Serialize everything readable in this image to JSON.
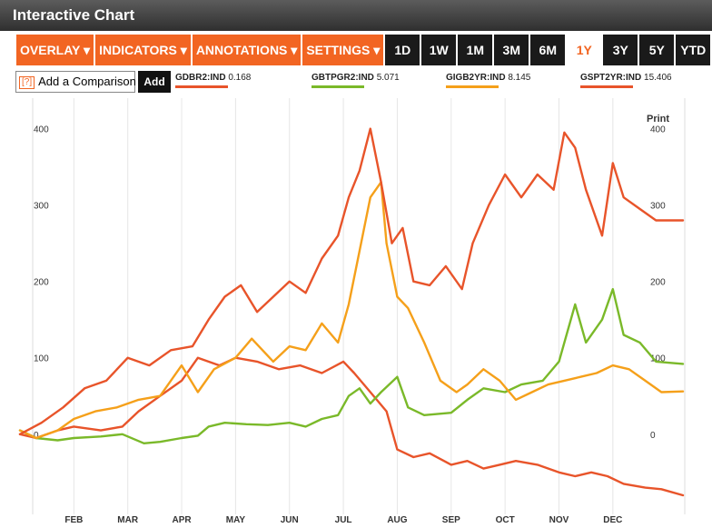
{
  "header": {
    "title": "Interactive Chart"
  },
  "toolbar": {
    "menus": [
      {
        "label": "OVERLAY ▾"
      },
      {
        "label": "INDICATORS ▾"
      },
      {
        "label": "ANNOTATIONS ▾"
      },
      {
        "label": "SETTINGS ▾"
      }
    ],
    "ranges": [
      "1D",
      "1W",
      "1M",
      "3M",
      "6M",
      "1Y",
      "3Y",
      "5Y",
      "YTD"
    ],
    "active_range": "1Y"
  },
  "comparison": {
    "help": "[?]",
    "placeholder": "Add a Comparison",
    "add_label": "Add"
  },
  "legend": [
    {
      "symbol": "GDBR2:IND",
      "value": "0.168",
      "color": "#e8542a"
    },
    {
      "symbol": "GBTPGR2:IND",
      "value": "5.071",
      "color": "#7ab929"
    },
    {
      "symbol": "GIGB2YR:IND",
      "value": "8.145",
      "color": "#f5a01a"
    },
    {
      "symbol": "GSPT2YR:IND",
      "value": "15.406",
      "color": "#e8542a"
    }
  ],
  "print_label": "Print",
  "chart_data": {
    "type": "line",
    "title": "",
    "xlabel": "",
    "ylabel": "",
    "ylim": [
      -105,
      440
    ],
    "xlim": [
      0,
      12.3
    ],
    "y_ticks": [
      0,
      100,
      200,
      300,
      400
    ],
    "x_ticks": [
      {
        "label": "FEB",
        "x": 1
      },
      {
        "label": "MAR",
        "x": 2
      },
      {
        "label": "APR",
        "x": 3
      },
      {
        "label": "MAY",
        "x": 4
      },
      {
        "label": "JUN",
        "x": 5
      },
      {
        "label": "JUL",
        "x": 6
      },
      {
        "label": "AUG",
        "x": 7
      },
      {
        "label": "SEP",
        "x": 8
      },
      {
        "label": "OCT",
        "x": 9
      },
      {
        "label": "NOV",
        "x": 10
      },
      {
        "label": "DEC",
        "x": 11
      }
    ],
    "grid": "vertical",
    "series": [
      {
        "name": "GDBR2:IND",
        "color": "#e8542a",
        "points": [
          [
            0,
            0
          ],
          [
            0.3,
            -5
          ],
          [
            0.7,
            5
          ],
          [
            1,
            10
          ],
          [
            1.5,
            5
          ],
          [
            1.9,
            10
          ],
          [
            2.2,
            30
          ],
          [
            2.6,
            50
          ],
          [
            3,
            70
          ],
          [
            3.3,
            100
          ],
          [
            3.7,
            90
          ],
          [
            4,
            100
          ],
          [
            4.4,
            95
          ],
          [
            4.8,
            85
          ],
          [
            5.2,
            90
          ],
          [
            5.6,
            80
          ],
          [
            6,
            95
          ],
          [
            6.2,
            80
          ],
          [
            6.5,
            55
          ],
          [
            6.8,
            30
          ],
          [
            7,
            -20
          ],
          [
            7.3,
            -30
          ],
          [
            7.6,
            -25
          ],
          [
            8,
            -40
          ],
          [
            8.3,
            -35
          ],
          [
            8.6,
            -45
          ],
          [
            8.9,
            -40
          ],
          [
            9.2,
            -35
          ],
          [
            9.6,
            -40
          ],
          [
            10,
            -50
          ],
          [
            10.3,
            -55
          ],
          [
            10.6,
            -50
          ],
          [
            10.9,
            -55
          ],
          [
            11.2,
            -65
          ],
          [
            11.6,
            -70
          ],
          [
            11.9,
            -72
          ],
          [
            12.3,
            -80
          ]
        ]
      },
      {
        "name": "GBTPGR2:IND",
        "color": "#7ab929",
        "points": [
          [
            0,
            5
          ],
          [
            0.3,
            -5
          ],
          [
            0.7,
            -8
          ],
          [
            1,
            -5
          ],
          [
            1.5,
            -3
          ],
          [
            1.9,
            0
          ],
          [
            2.3,
            -12
          ],
          [
            2.6,
            -10
          ],
          [
            3,
            -5
          ],
          [
            3.3,
            -2
          ],
          [
            3.5,
            10
          ],
          [
            3.8,
            15
          ],
          [
            4.2,
            13
          ],
          [
            4.6,
            12
          ],
          [
            5,
            15
          ],
          [
            5.3,
            10
          ],
          [
            5.6,
            20
          ],
          [
            5.9,
            25
          ],
          [
            6.1,
            50
          ],
          [
            6.3,
            60
          ],
          [
            6.5,
            40
          ],
          [
            6.7,
            55
          ],
          [
            7,
            75
          ],
          [
            7.2,
            35
          ],
          [
            7.5,
            25
          ],
          [
            8,
            28
          ],
          [
            8.3,
            45
          ],
          [
            8.6,
            60
          ],
          [
            9,
            55
          ],
          [
            9.3,
            65
          ],
          [
            9.7,
            70
          ],
          [
            10,
            95
          ],
          [
            10.3,
            170
          ],
          [
            10.5,
            120
          ],
          [
            10.8,
            150
          ],
          [
            11,
            190
          ],
          [
            11.2,
            130
          ],
          [
            11.5,
            120
          ],
          [
            11.8,
            95
          ],
          [
            12.3,
            92
          ]
        ]
      },
      {
        "name": "GIGB2YR:IND",
        "color": "#f5a01a",
        "points": [
          [
            0,
            5
          ],
          [
            0.3,
            -5
          ],
          [
            0.7,
            5
          ],
          [
            1,
            20
          ],
          [
            1.4,
            30
          ],
          [
            1.8,
            35
          ],
          [
            2.2,
            45
          ],
          [
            2.6,
            50
          ],
          [
            3,
            90
          ],
          [
            3.3,
            55
          ],
          [
            3.6,
            85
          ],
          [
            4,
            100
          ],
          [
            4.3,
            125
          ],
          [
            4.7,
            95
          ],
          [
            5,
            115
          ],
          [
            5.3,
            110
          ],
          [
            5.6,
            145
          ],
          [
            5.9,
            120
          ],
          [
            6.1,
            170
          ],
          [
            6.3,
            240
          ],
          [
            6.5,
            310
          ],
          [
            6.7,
            330
          ],
          [
            6.8,
            250
          ],
          [
            7,
            180
          ],
          [
            7.2,
            165
          ],
          [
            7.5,
            120
          ],
          [
            7.8,
            70
          ],
          [
            8.1,
            55
          ],
          [
            8.3,
            65
          ],
          [
            8.6,
            85
          ],
          [
            8.9,
            70
          ],
          [
            9.2,
            45
          ],
          [
            9.5,
            55
          ],
          [
            9.8,
            65
          ],
          [
            10.1,
            70
          ],
          [
            10.4,
            75
          ],
          [
            10.7,
            80
          ],
          [
            11,
            90
          ],
          [
            11.3,
            85
          ],
          [
            11.6,
            70
          ],
          [
            11.9,
            55
          ],
          [
            12.3,
            56
          ]
        ]
      },
      {
        "name": "GSPT2YR:IND",
        "color": "#e8542a",
        "points": [
          [
            0,
            0
          ],
          [
            0.4,
            15
          ],
          [
            0.8,
            35
          ],
          [
            1.2,
            60
          ],
          [
            1.6,
            70
          ],
          [
            2,
            100
          ],
          [
            2.4,
            90
          ],
          [
            2.8,
            110
          ],
          [
            3.2,
            115
          ],
          [
            3.5,
            150
          ],
          [
            3.8,
            180
          ],
          [
            4.1,
            195
          ],
          [
            4.4,
            160
          ],
          [
            4.7,
            180
          ],
          [
            5,
            200
          ],
          [
            5.3,
            185
          ],
          [
            5.6,
            230
          ],
          [
            5.9,
            260
          ],
          [
            6.1,
            310
          ],
          [
            6.3,
            345
          ],
          [
            6.5,
            400
          ],
          [
            6.7,
            330
          ],
          [
            6.9,
            250
          ],
          [
            7.1,
            270
          ],
          [
            7.3,
            200
          ],
          [
            7.6,
            195
          ],
          [
            7.9,
            220
          ],
          [
            8.2,
            190
          ],
          [
            8.4,
            250
          ],
          [
            8.7,
            300
          ],
          [
            9,
            340
          ],
          [
            9.3,
            310
          ],
          [
            9.6,
            340
          ],
          [
            9.9,
            320
          ],
          [
            10.1,
            395
          ],
          [
            10.3,
            375
          ],
          [
            10.5,
            320
          ],
          [
            10.8,
            260
          ],
          [
            11,
            355
          ],
          [
            11.2,
            310
          ],
          [
            11.5,
            295
          ],
          [
            11.8,
            280
          ],
          [
            12.3,
            280
          ]
        ]
      }
    ]
  }
}
